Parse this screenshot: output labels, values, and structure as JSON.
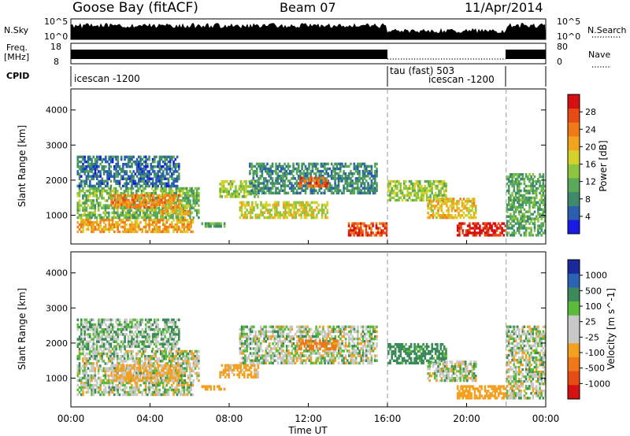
{
  "header": {
    "station": "Goose Bay (fitACF)",
    "beam": "Beam 07",
    "date": "11/Apr/2014"
  },
  "nsky_panel": {
    "left_label": "N.Sky",
    "right_label": "N.Search",
    "left_ticks": [
      "10^5",
      "10^0"
    ],
    "right_ticks": [
      "10^5",
      "10^0"
    ]
  },
  "freq_panel": {
    "left_label_line1": "Freq.",
    "left_label_line2": "[MHz]",
    "left_ticks": [
      "18",
      "8"
    ],
    "right_label": "Nave",
    "right_ticks": [
      "80",
      "0"
    ]
  },
  "cpid_panel": {
    "label": "CPID",
    "modes": [
      {
        "name": "icescan -1200",
        "start_hour": 0,
        "end_hour": 16
      },
      {
        "name": "tau (fast) 503",
        "start_hour": 16,
        "end_hour": 16
      },
      {
        "name": "icescan -1200",
        "start_hour": 16,
        "end_hour": 22
      }
    ]
  },
  "time_axis": {
    "label": "Time UT",
    "ticks": [
      "00:00",
      "04:00",
      "08:00",
      "12:00",
      "16:00",
      "20:00",
      "00:00"
    ],
    "tick_hours": [
      0,
      4,
      8,
      12,
      16,
      20,
      24
    ],
    "range_hours": [
      0,
      24
    ],
    "dashed_markers_hours": [
      16,
      22
    ]
  },
  "chart_data": [
    {
      "type": "heatmap",
      "ylabel": "Slant Range [km]",
      "xlabel": "Time UT",
      "ylim": [
        180,
        4600
      ],
      "y_ticks": [
        1000,
        2000,
        3000,
        4000
      ],
      "colorbar": {
        "label": "Power [dB]",
        "ticks": [
          "4",
          "8",
          "12",
          "16",
          "20",
          "24",
          "28"
        ],
        "range": [
          0,
          30
        ],
        "colors": [
          "#1a1ae6",
          "#2a5fb0",
          "#3e8a6a",
          "#5aa85a",
          "#8cc63e",
          "#d6d12a",
          "#f2a41f",
          "#f07a18",
          "#e84a14",
          "#d41010"
        ]
      },
      "regions": [
        {
          "t": [
            0.3,
            6.2
          ],
          "r": [
            500,
            900
          ],
          "value": 20
        },
        {
          "t": [
            0.3,
            6.5
          ],
          "r": [
            900,
            1800
          ],
          "value": 12
        },
        {
          "t": [
            0.3,
            5.5
          ],
          "r": [
            1800,
            2700
          ],
          "value": 6
        },
        {
          "t": [
            2.0,
            5.5
          ],
          "r": [
            1200,
            1600
          ],
          "value": 22
        },
        {
          "t": [
            4.5,
            6.0
          ],
          "r": [
            1000,
            1300
          ],
          "value": 18
        },
        {
          "t": [
            6.5,
            7.8
          ],
          "r": [
            650,
            800
          ],
          "value": 10
        },
        {
          "t": [
            7.5,
            9.5
          ],
          "r": [
            1500,
            2000
          ],
          "value": 14
        },
        {
          "t": [
            8.5,
            13.0
          ],
          "r": [
            900,
            1400
          ],
          "value": 16
        },
        {
          "t": [
            9.0,
            15.5
          ],
          "r": [
            1600,
            2500
          ],
          "value": 8
        },
        {
          "t": [
            11.5,
            13.0
          ],
          "r": [
            1800,
            2100
          ],
          "value": 24
        },
        {
          "t": [
            14.0,
            16.0
          ],
          "r": [
            400,
            800
          ],
          "value": 26
        },
        {
          "t": [
            16.0,
            19.0
          ],
          "r": [
            1400,
            2000
          ],
          "value": 14
        },
        {
          "t": [
            18.0,
            20.5
          ],
          "r": [
            900,
            1500
          ],
          "value": 18
        },
        {
          "t": [
            19.5,
            22.0
          ],
          "r": [
            400,
            800
          ],
          "value": 28
        },
        {
          "t": [
            22.0,
            24.0
          ],
          "r": [
            400,
            2200
          ],
          "value": 10
        }
      ]
    },
    {
      "type": "heatmap",
      "ylabel": "Slant Range [km]",
      "xlabel": "Time UT",
      "ylim": [
        180,
        4600
      ],
      "y_ticks": [
        1000,
        2000,
        3000,
        4000
      ],
      "colorbar": {
        "label": "Velocity [m s^-1]",
        "ticks": [
          "1000",
          "500",
          "100",
          "25",
          "-25",
          "-100",
          "-500",
          "-1000"
        ],
        "colors": [
          "#1a2a9a",
          "#2a62b4",
          "#3c8a5a",
          "#5dbb3a",
          "#c8c8c8",
          "#c8c8c8",
          "#f4a020",
          "#f07818",
          "#e84a14",
          "#d41010"
        ]
      },
      "ground_scatter_color": "#c8c8c8",
      "regions": [
        {
          "t": [
            0.3,
            6.2
          ],
          "r": [
            500,
            900
          ],
          "value": 0
        },
        {
          "t": [
            0.3,
            6.5
          ],
          "r": [
            900,
            1800
          ],
          "value": 0
        },
        {
          "t": [
            2.0,
            5.5
          ],
          "r": [
            900,
            1400
          ],
          "value": -150
        },
        {
          "t": [
            0.3,
            5.5
          ],
          "r": [
            1800,
            2700
          ],
          "value": 60
        },
        {
          "t": [
            6.5,
            7.8
          ],
          "r": [
            650,
            800
          ],
          "value": -300
        },
        {
          "t": [
            7.5,
            9.5
          ],
          "r": [
            1000,
            1400
          ],
          "value": -200
        },
        {
          "t": [
            8.5,
            15.5
          ],
          "r": [
            1400,
            2500
          ],
          "value": 0
        },
        {
          "t": [
            11.5,
            13.5
          ],
          "r": [
            1800,
            2100
          ],
          "value": -600
        },
        {
          "t": [
            16.0,
            19.0
          ],
          "r": [
            1400,
            2000
          ],
          "value": 200
        },
        {
          "t": [
            18.0,
            20.5
          ],
          "r": [
            900,
            1500
          ],
          "value": 0
        },
        {
          "t": [
            19.5,
            22.0
          ],
          "r": [
            400,
            800
          ],
          "value": -300
        },
        {
          "t": [
            22.0,
            24.0
          ],
          "r": [
            400,
            2500
          ],
          "value": 0
        }
      ]
    }
  ]
}
